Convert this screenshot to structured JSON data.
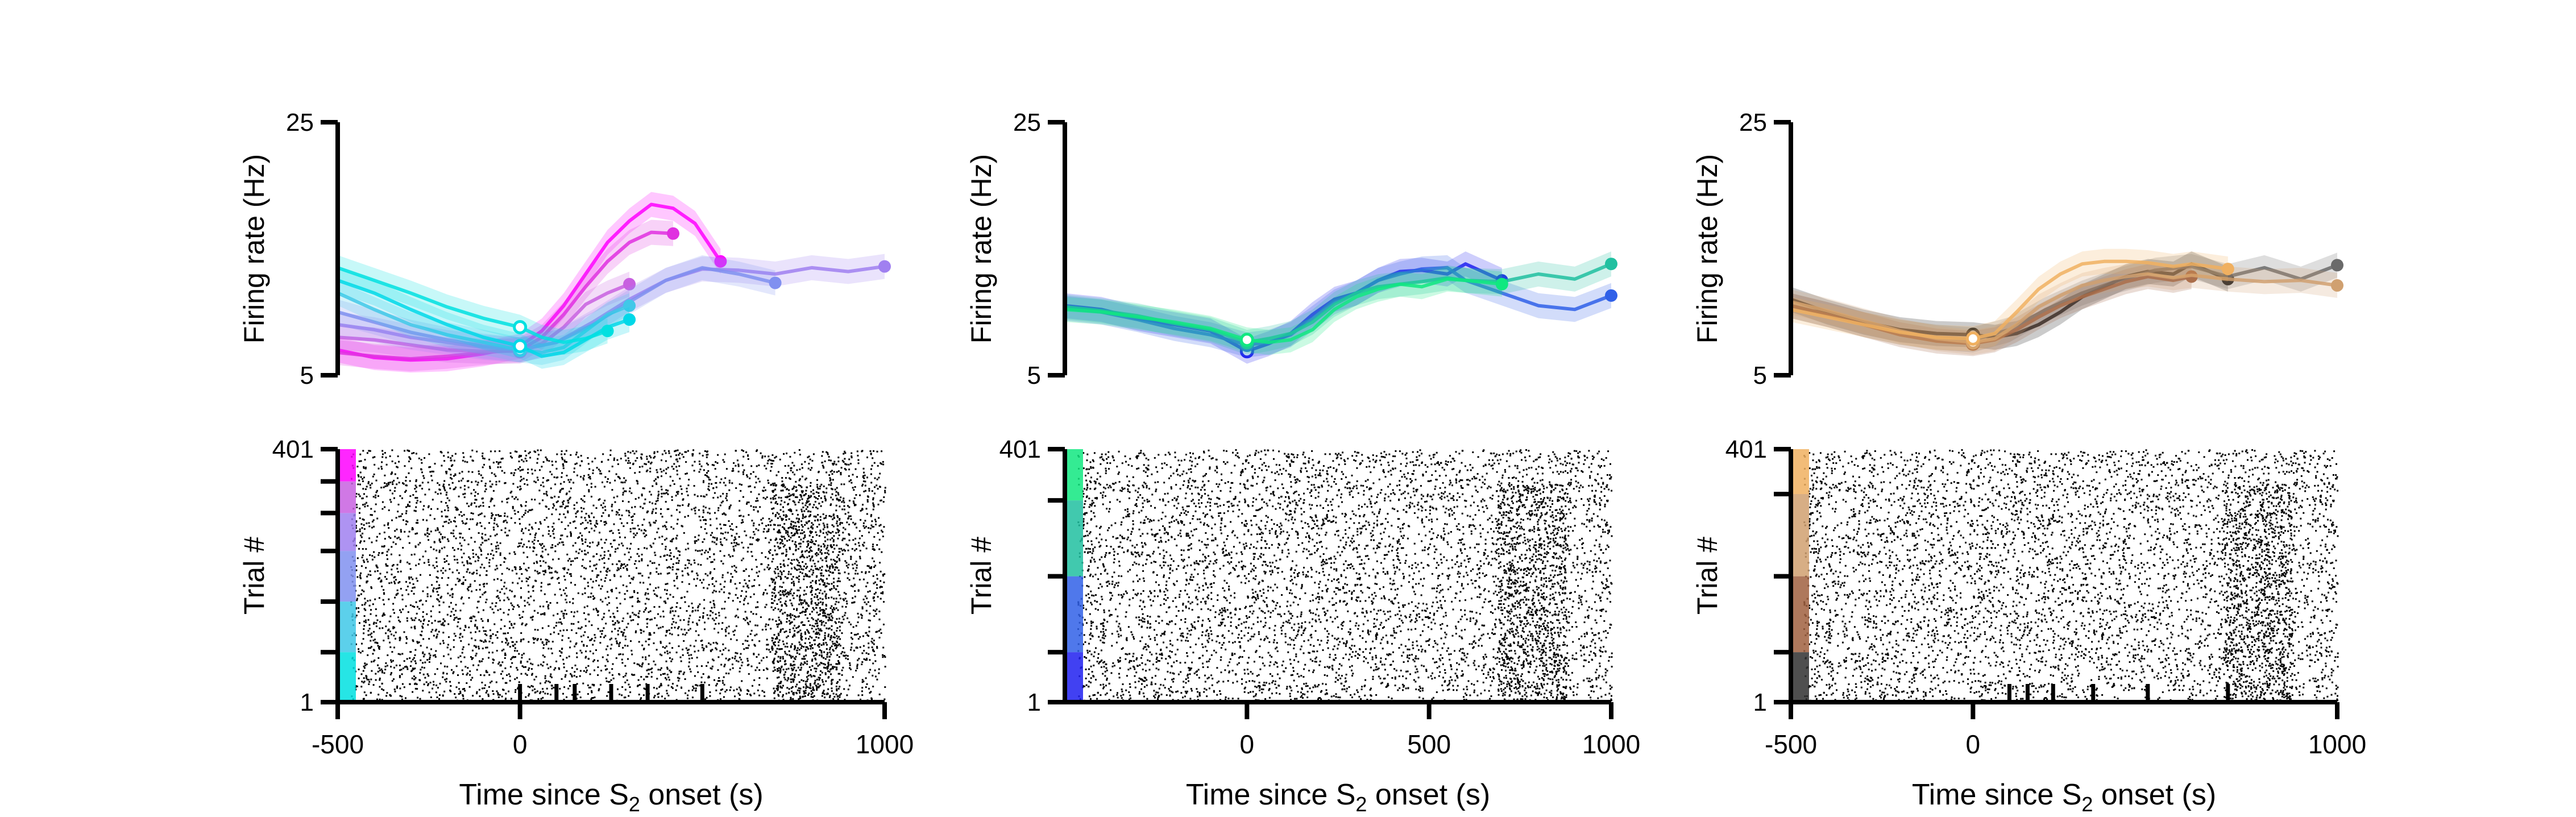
{
  "chart_data": [
    {
      "type": "line",
      "panel": "left",
      "ylabel": "Firing rate (Hz)",
      "ylim": [
        5,
        25
      ],
      "yticks": [
        "5",
        "25"
      ],
      "xlim": [
        -500,
        1000
      ],
      "series": [
        {
          "color": "#ff00ff",
          "x": [
            -500,
            -400,
            -300,
            -200,
            -100,
            0,
            60,
            120,
            180,
            240,
            300,
            360,
            420,
            480,
            550
          ],
          "y": [
            7.0,
            6.4,
            6.2,
            6.3,
            6.7,
            7.3,
            8.5,
            10.5,
            13,
            15.5,
            17.2,
            18.5,
            18.2,
            17.0,
            14.0
          ]
        },
        {
          "color": "#e030e0",
          "x": [
            -500,
            -400,
            -300,
            -200,
            -100,
            0,
            60,
            120,
            180,
            240,
            300,
            360,
            420
          ],
          "y": [
            6.8,
            6.5,
            6.3,
            6.5,
            6.8,
            7.0,
            8.0,
            9.8,
            12,
            14,
            15.5,
            16.3,
            16.2
          ]
        },
        {
          "color": "#c860e0",
          "x": [
            -500,
            -400,
            -300,
            -200,
            -100,
            0,
            60,
            120,
            180,
            240,
            300
          ],
          "y": [
            8.0,
            7.8,
            7.4,
            7.0,
            6.9,
            6.9,
            7.5,
            8.8,
            10.6,
            11.5,
            12.2
          ]
        },
        {
          "color": "#a080f0",
          "x": [
            -500,
            -400,
            -300,
            -200,
            -100,
            0,
            100,
            200,
            300,
            400,
            500,
            600,
            700,
            800,
            900,
            1000
          ],
          "y": [
            9.0,
            8.6,
            8.0,
            7.6,
            7.2,
            7.0,
            7.6,
            9.2,
            11,
            12.5,
            13.4,
            13.3,
            13.0,
            13.5,
            13.2,
            13.6
          ]
        },
        {
          "color": "#8090f0",
          "x": [
            -500,
            -400,
            -300,
            -200,
            -100,
            0,
            100,
            200,
            300,
            400,
            500,
            600,
            700
          ],
          "y": [
            10.0,
            9.2,
            8.4,
            7.8,
            7.3,
            7.0,
            7.6,
            9.0,
            10.8,
            12.5,
            13.5,
            13.0,
            12.3
          ]
        },
        {
          "color": "#40c8e8",
          "x": [
            -500,
            -400,
            -300,
            -200,
            -100,
            0,
            60,
            120,
            180,
            240,
            300
          ],
          "y": [
            11.5,
            10.2,
            9.0,
            8.2,
            7.6,
            7.0,
            6.8,
            7.2,
            8.5,
            9.8,
            10.5
          ]
        },
        {
          "color": "#00d8e8",
          "x": [
            -500,
            -400,
            -300,
            -200,
            -100,
            0,
            60,
            120,
            180,
            240,
            300
          ],
          "y": [
            12.5,
            11.5,
            10.2,
            9.0,
            8.0,
            7.3,
            6.5,
            6.8,
            7.8,
            8.8,
            9.4
          ]
        },
        {
          "color": "#00e0e0",
          "x": [
            -500,
            -400,
            -300,
            -200,
            -100,
            0,
            60,
            120,
            180,
            240
          ],
          "y": [
            13.5,
            12.5,
            11.5,
            10.4,
            9.5,
            8.8,
            8.0,
            7.6,
            7.9,
            8.5
          ]
        }
      ]
    },
    {
      "type": "line",
      "panel": "middle",
      "ylabel": "Firing rate (Hz)",
      "ylim": [
        5,
        25
      ],
      "yticks": [
        "5",
        "25"
      ],
      "xlim": [
        -500,
        1000
      ],
      "series": [
        {
          "color": "#2020f0",
          "x": [
            -500,
            -400,
            -300,
            -200,
            -100,
            0,
            60,
            120,
            180,
            240,
            300,
            360,
            420,
            480,
            550,
            600,
            700
          ],
          "y": [
            10.5,
            10.2,
            9.5,
            9.0,
            8.5,
            6.9,
            7.5,
            8.3,
            9.8,
            11,
            11.5,
            12.5,
            13.2,
            13.3,
            13.0,
            13.8,
            12.5
          ]
        },
        {
          "color": "#3060e8",
          "x": [
            -500,
            -400,
            -300,
            -200,
            -100,
            0,
            60,
            120,
            180,
            240,
            300,
            360,
            420,
            480,
            550,
            600,
            700,
            800,
            900,
            1000
          ],
          "y": [
            10.3,
            10.0,
            9.4,
            8.7,
            8.2,
            7.4,
            7.6,
            8.2,
            9.5,
            10.8,
            11.5,
            12.5,
            13.0,
            13.4,
            13.5,
            12.5,
            11.5,
            10.5,
            10.2,
            11.3
          ]
        },
        {
          "color": "#20c0a0",
          "x": [
            -500,
            -400,
            -300,
            -200,
            -100,
            0,
            60,
            120,
            180,
            240,
            300,
            360,
            420,
            480,
            550,
            600,
            700,
            800,
            900,
            1000
          ],
          "y": [
            10.4,
            10.1,
            9.7,
            9.1,
            8.6,
            7.6,
            7.9,
            8.3,
            9.2,
            10.6,
            11.5,
            12.0,
            12.2,
            12.4,
            12.7,
            12.5,
            12.4,
            13.0,
            12.6,
            13.8
          ]
        },
        {
          "color": "#10e880",
          "x": [
            -500,
            -400,
            -300,
            -200,
            -100,
            0,
            60,
            120,
            180,
            240,
            300,
            360,
            420,
            480,
            550,
            600,
            700
          ],
          "y": [
            10.2,
            10.0,
            9.6,
            9.2,
            8.7,
            7.8,
            7.6,
            7.8,
            8.6,
            10.2,
            11.2,
            11.8,
            12.2,
            12.0,
            12.6,
            12.5,
            12.2
          ]
        }
      ]
    },
    {
      "type": "line",
      "panel": "right",
      "ylabel": "Firing rate (Hz)",
      "ylim": [
        5,
        25
      ],
      "yticks": [
        "5",
        "25"
      ],
      "xlim": [
        -500,
        1000
      ],
      "series": [
        {
          "color": "#101010",
          "x": [
            -500,
            -400,
            -300,
            -200,
            -100,
            0,
            60,
            120,
            180,
            240,
            300,
            360,
            420,
            480,
            550,
            600,
            700
          ],
          "y": [
            11.0,
            10.0,
            9.2,
            8.6,
            8.3,
            8.2,
            8.0,
            8.3,
            9.0,
            10.0,
            11.2,
            12.0,
            12.8,
            13.2,
            13.0,
            13.8,
            12.6
          ]
        },
        {
          "color": "#6a6a6a",
          "x": [
            -500,
            -400,
            -300,
            -200,
            -100,
            0,
            100,
            200,
            300,
            400,
            500,
            600,
            700,
            800,
            900,
            1000
          ],
          "y": [
            10.5,
            9.8,
            9.0,
            8.4,
            8.0,
            7.8,
            8.6,
            10.2,
            11.5,
            12.5,
            13.3,
            13.6,
            12.8,
            13.5,
            12.6,
            13.7
          ]
        },
        {
          "color": "#a06040",
          "x": [
            -500,
            -400,
            -300,
            -200,
            -100,
            0,
            60,
            120,
            180,
            240,
            300,
            360,
            420,
            480,
            550,
            600
          ],
          "y": [
            10.5,
            9.8,
            9.0,
            8.2,
            7.7,
            7.5,
            7.8,
            8.6,
            9.6,
            10.5,
            11.2,
            11.8,
            12.4,
            12.8,
            12.5,
            12.8
          ]
        },
        {
          "color": "#d0a070",
          "x": [
            -500,
            -400,
            -300,
            -200,
            -100,
            0,
            60,
            120,
            180,
            240,
            300,
            360,
            420,
            480,
            550,
            600,
            700,
            800,
            900,
            1000
          ],
          "y": [
            10.8,
            10.1,
            9.3,
            8.5,
            7.9,
            7.6,
            7.9,
            9.0,
            10.4,
            11.3,
            12.1,
            12.5,
            12.8,
            13.0,
            12.7,
            12.9,
            12.6,
            12.4,
            12.5,
            12.1
          ]
        },
        {
          "color": "#f0b060",
          "x": [
            -500,
            -400,
            -300,
            -200,
            -100,
            0,
            60,
            120,
            180,
            240,
            300,
            360,
            420,
            480,
            550,
            600,
            700
          ],
          "y": [
            10.2,
            9.6,
            9.0,
            8.4,
            8.0,
            7.9,
            8.3,
            10.0,
            11.8,
            13.0,
            13.8,
            14.0,
            14.0,
            13.9,
            13.6,
            13.8,
            13.4
          ]
        }
      ]
    },
    {
      "type": "raster",
      "panel": "left",
      "ylabel": "Trial #",
      "yticks": [
        "1",
        "401"
      ],
      "xlabel": "Time since S2 onset (s)",
      "xticks": [
        "-500",
        "0",
        "1000"
      ],
      "xlim": [
        -500,
        1000
      ],
      "event_ticks": [
        0,
        100,
        150,
        250,
        350,
        500
      ],
      "trial_bands": [
        {
          "color": "#00e0e0",
          "from": 1,
          "to": 80
        },
        {
          "color": "#40c8e8",
          "from": 80,
          "to": 160
        },
        {
          "color": "#8090f0",
          "from": 160,
          "to": 240
        },
        {
          "color": "#a080f0",
          "from": 240,
          "to": 300
        },
        {
          "color": "#c860e0",
          "from": 300,
          "to": 350
        },
        {
          "color": "#ff00ff",
          "from": 350,
          "to": 401
        }
      ]
    },
    {
      "type": "raster",
      "panel": "middle",
      "ylabel": "Trial #",
      "yticks": [
        "1",
        "401"
      ],
      "xlabel": "Time since S2 onset (s)",
      "xticks": [
        "0",
        "500",
        "1000"
      ],
      "xlim": [
        -500,
        1000
      ],
      "event_ticks": [],
      "trial_bands": [
        {
          "color": "#2020f0",
          "from": 1,
          "to": 80
        },
        {
          "color": "#3060e8",
          "from": 80,
          "to": 200
        },
        {
          "color": "#20c0a0",
          "from": 200,
          "to": 320
        },
        {
          "color": "#10e880",
          "from": 320,
          "to": 401
        }
      ]
    },
    {
      "type": "raster",
      "panel": "right",
      "ylabel": "Trial #",
      "yticks": [
        "1",
        "401"
      ],
      "xlabel": "Time since S2 onset (s)",
      "xticks": [
        "-500",
        "0",
        "1000"
      ],
      "xlim": [
        -500,
        1000
      ],
      "event_ticks": [
        100,
        150,
        220,
        330,
        480,
        700
      ],
      "trial_bands": [
        {
          "color": "#303030",
          "from": 1,
          "to": 80
        },
        {
          "color": "#a06040",
          "from": 80,
          "to": 200
        },
        {
          "color": "#d0a070",
          "from": 200,
          "to": 330
        },
        {
          "color": "#f0b060",
          "from": 330,
          "to": 401
        }
      ]
    }
  ]
}
